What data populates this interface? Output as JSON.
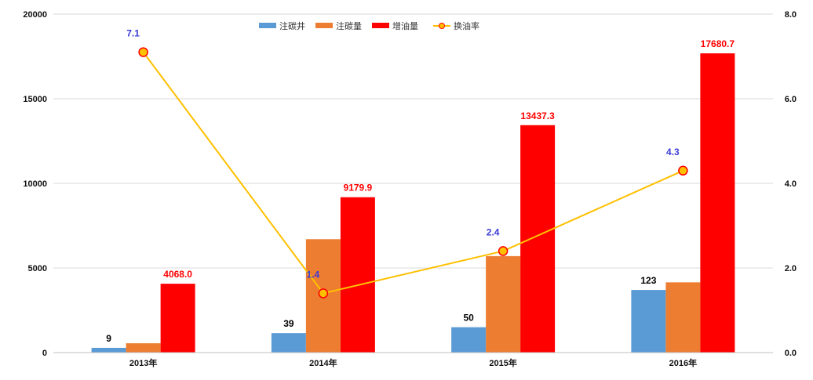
{
  "chart_data": {
    "type": "bar",
    "categories": [
      "2013年",
      "2014年",
      "2015年",
      "2016年"
    ],
    "series": [
      {
        "name": "注碳井",
        "values": [
          280,
          1150,
          1500,
          3700
        ],
        "labels": [
          "9",
          "39",
          "50",
          "123"
        ],
        "color": "#5b9bd5",
        "label_color": "#000000"
      },
      {
        "name": "注碳量",
        "values": [
          550,
          6700,
          5700,
          4150
        ],
        "color": "#ed7d31"
      },
      {
        "name": "增油量",
        "values": [
          4068.0,
          9179.9,
          13437.3,
          17680.7
        ],
        "labels": [
          "4068.0",
          "9179.9",
          "13437.3",
          "17680.7"
        ],
        "color": "#ff0000",
        "label_color": "#ff0000"
      }
    ],
    "line_series": {
      "name": "换油率",
      "values": [
        7.1,
        1.4,
        2.4,
        4.3
      ],
      "labels": [
        "7.1",
        "1.4",
        "2.4",
        "4.3"
      ],
      "axis": "right",
      "line_color": "#ffc000",
      "marker_fill": "#ffc000",
      "marker_edge": "#ff0000",
      "label_color": "#3b3bd6"
    },
    "left_axis": {
      "ylim": [
        0,
        20000
      ],
      "ticks": [
        "0",
        "5000",
        "10000",
        "15000",
        "20000"
      ]
    },
    "right_axis": {
      "ylim": [
        0,
        8
      ],
      "ticks": [
        "0.0",
        "2.0",
        "4.0",
        "6.0",
        "8.0"
      ]
    },
    "grid": true,
    "legend": "top-center",
    "title": "",
    "xlabel": "",
    "ylabel": ""
  }
}
